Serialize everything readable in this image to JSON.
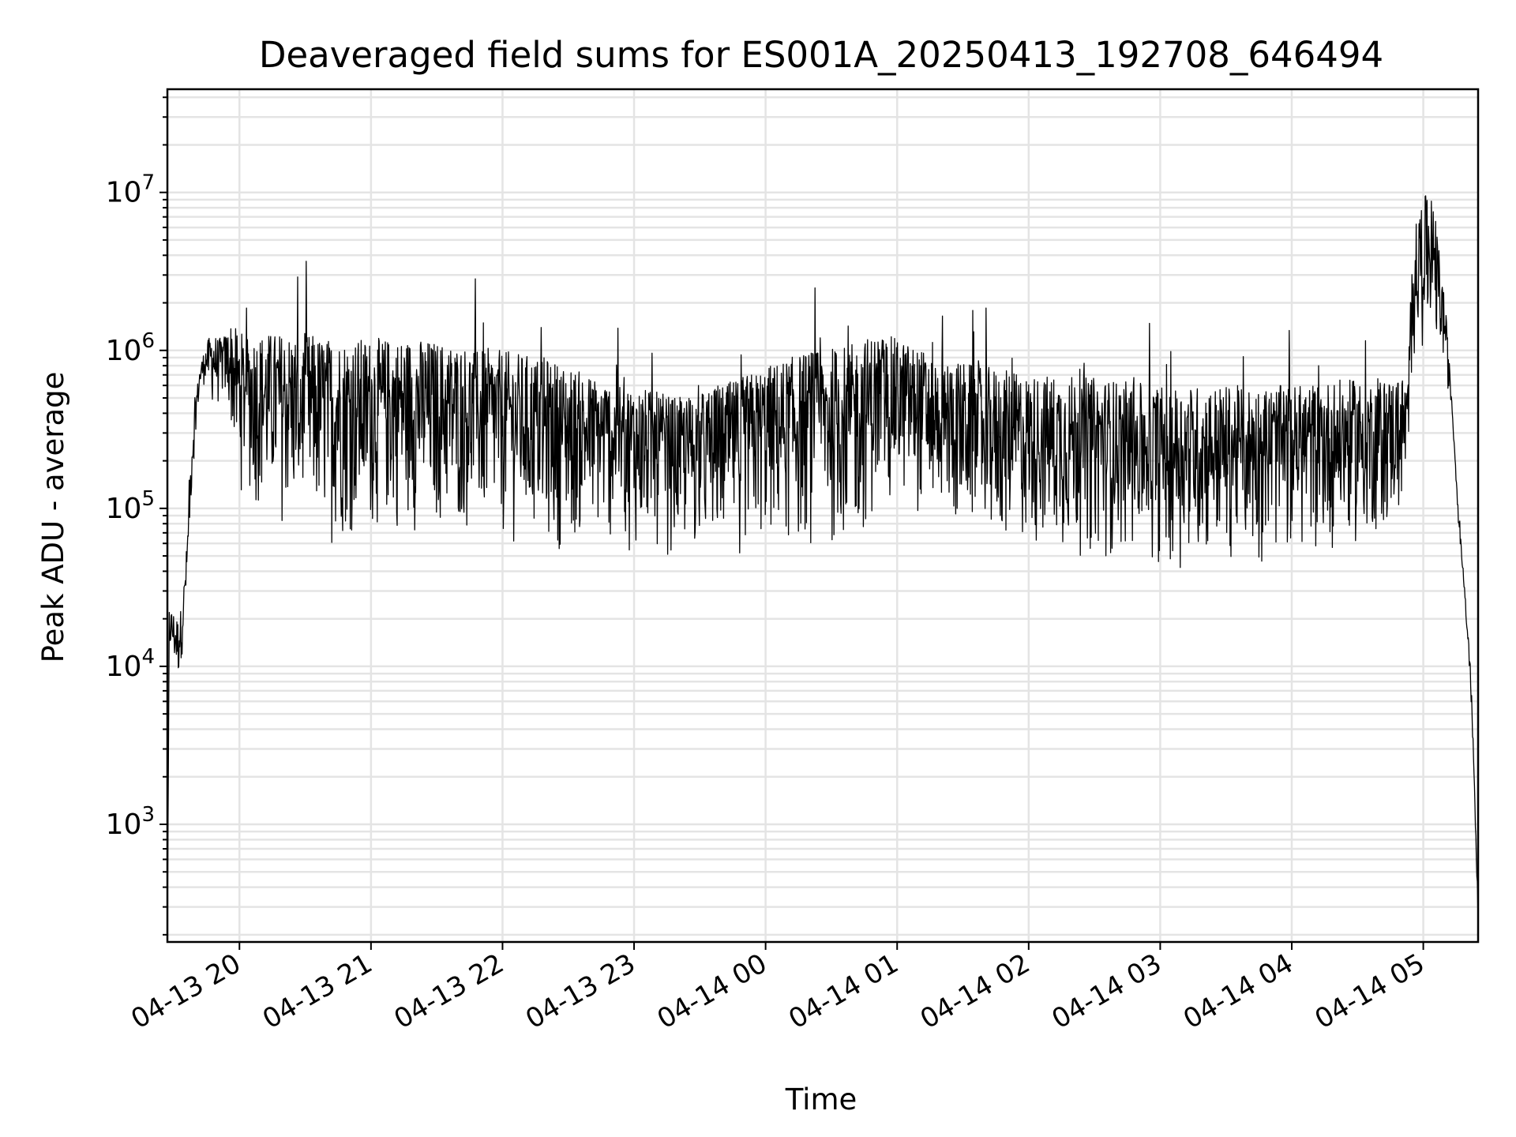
{
  "chart_data": {
    "type": "line",
    "title": "Deaveraged field sums for ES001A_20250413_192708_646494",
    "xlabel": "Time",
    "ylabel": "Peak ADU - average",
    "yscale": "log",
    "ylim": [
      180,
      45000000
    ],
    "xlim": [
      "2025-04-13 19:27:08",
      "2025-04-14 05:25:00"
    ],
    "grid": true,
    "legend": "none",
    "x_ticks": [
      "2025-04-13 20:00",
      "2025-04-13 21:00",
      "2025-04-13 22:00",
      "2025-04-13 23:00",
      "2025-04-14 00:00",
      "2025-04-14 01:00",
      "2025-04-14 02:00",
      "2025-04-14 03:00",
      "2025-04-14 04:00",
      "2025-04-14 05:00"
    ],
    "x_tick_labels": [
      "04-13 20",
      "04-13 21",
      "04-13 22",
      "04-13 23",
      "04-14 00",
      "04-14 01",
      "04-14 02",
      "04-14 03",
      "04-14 04",
      "04-14 05"
    ],
    "y_ticks": [
      1000,
      10000,
      100000,
      1000000,
      10000000
    ],
    "y_tick_labels": [
      {
        "base": "10",
        "exp": "3"
      },
      {
        "base": "10",
        "exp": "4"
      },
      {
        "base": "10",
        "exp": "5"
      },
      {
        "base": "10",
        "exp": "6"
      },
      {
        "base": "10",
        "exp": "7"
      }
    ],
    "series": [
      {
        "color": "#000000",
        "x": [
          "2025-04-13 19:27:08",
          "2025-04-13 19:28",
          "2025-04-13 19:30",
          "2025-04-13 19:32",
          "2025-04-13 19:34",
          "2025-04-13 19:36",
          "2025-04-13 19:38",
          "2025-04-13 19:40",
          "2025-04-13 19:42",
          "2025-04-13 19:44",
          "2025-04-13 19:46",
          "2025-04-13 19:48",
          "2025-04-13 19:50",
          "2025-04-13 19:52",
          "2025-04-13 19:54",
          "2025-04-13 19:56",
          "2025-04-13 19:58",
          "2025-04-13 20:00",
          "2025-04-13 20:10",
          "2025-04-13 20:20",
          "2025-04-13 20:30",
          "2025-04-13 20:40",
          "2025-04-13 20:50",
          "2025-04-13 21:00",
          "2025-04-13 21:20",
          "2025-04-13 21:40",
          "2025-04-13 22:00",
          "2025-04-13 22:20",
          "2025-04-13 22:40",
          "2025-04-13 23:00",
          "2025-04-13 23:20",
          "2025-04-13 23:40",
          "2025-04-14 00:00",
          "2025-04-14 00:20",
          "2025-04-14 00:40",
          "2025-04-14 00:50",
          "2025-04-14 01:00",
          "2025-04-14 01:20",
          "2025-04-14 01:40",
          "2025-04-14 02:00",
          "2025-04-14 02:20",
          "2025-04-14 02:40",
          "2025-04-14 03:00",
          "2025-04-14 03:20",
          "2025-04-14 03:40",
          "2025-04-14 04:00",
          "2025-04-14 04:20",
          "2025-04-14 04:40",
          "2025-04-14 04:53",
          "2025-04-14 04:55",
          "2025-04-14 05:00",
          "2025-04-14 05:05",
          "2025-04-14 05:10",
          "2025-04-14 05:13",
          "2025-04-14 05:16",
          "2025-04-14 05:19",
          "2025-04-14 05:22",
          "2025-04-14 05:25"
        ],
        "y_upper": [
          200,
          24000,
          22000,
          20000,
          25000,
          60000,
          250000,
          500000,
          800000,
          1000000,
          1200000,
          1300000,
          1200000,
          1200000,
          1300000,
          1500000,
          1400000,
          1300000,
          1300000,
          1300000,
          1300000,
          1200000,
          1200000,
          1200000,
          1200000,
          1100000,
          1000000,
          900000,
          700000,
          600000,
          500000,
          600000,
          800000,
          1000000,
          1100000,
          1300000,
          1200000,
          900000,
          800000,
          700000,
          700000,
          650000,
          600000,
          600000,
          600000,
          600000,
          650000,
          650000,
          700000,
          5000000,
          10000000,
          8000000,
          2000000,
          500000,
          100000,
          30000,
          8000,
          300
        ],
        "y_lower": [
          200,
          11000,
          9000,
          7000,
          12000,
          25000,
          100000,
          300000,
          500000,
          600000,
          500000,
          400000,
          400000,
          450000,
          400000,
          300000,
          150000,
          120000,
          80000,
          70000,
          60000,
          55000,
          55000,
          60000,
          65000,
          60000,
          55000,
          50000,
          55000,
          50000,
          45000,
          45000,
          50000,
          50000,
          45000,
          80000,
          100000,
          70000,
          50000,
          50000,
          45000,
          45000,
          40000,
          40000,
          40000,
          45000,
          50000,
          60000,
          80000,
          700000,
          1000000,
          900000,
          700000,
          400000,
          80000,
          25000,
          5000,
          250
        ]
      }
    ]
  }
}
